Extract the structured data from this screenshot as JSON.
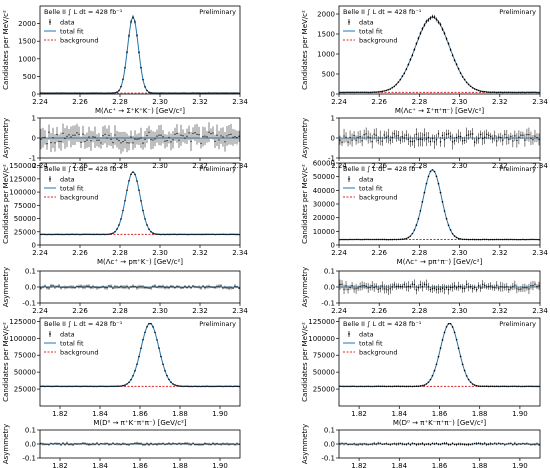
{
  "colors": {
    "data": "#000000",
    "fit": "#1f77b4",
    "background": "#d62728"
  },
  "legend": {
    "belle_label": "Belle II ∫ L dt = 428 fb⁻¹",
    "preliminary": "Preliminary",
    "data": "data",
    "total_fit": "total fit",
    "background": "background"
  },
  "asymmetry_ylabel": "Asymmetry",
  "chart_data": [
    {
      "type": "line",
      "row": 0,
      "col": 0,
      "title": "",
      "xlabel": "M(Λc⁺ → Σ⁺K⁺K⁻)  [GeV/c²]",
      "ylabel": "Candidates per MeV/c²",
      "xlim": [
        2.24,
        2.34
      ],
      "ylim": [
        0,
        2500
      ],
      "xticks": [
        "2.24",
        "2.26",
        "2.28",
        "2.30",
        "2.32",
        "2.34"
      ],
      "yticks": [
        "0",
        "500",
        "1000",
        "1500",
        "2000"
      ],
      "series": [
        {
          "name": "total fit",
          "peak": 2.2865,
          "sigma": 0.0027,
          "amplitude": 2150,
          "background": 25
        }
      ],
      "legend": "top-left",
      "asymmetry": {
        "ylim": [
          -1,
          1
        ],
        "yticks": [
          "-1",
          "0",
          "1"
        ],
        "xticks": [
          "2.24",
          "2.26",
          "2.28",
          "2.30",
          "2.32",
          "2.34"
        ],
        "spread": 0.5
      }
    },
    {
      "type": "line",
      "row": 0,
      "col": 1,
      "title": "",
      "xlabel": "M(Λc⁺ → Σ⁺π⁺π⁻)  [GeV/c²]",
      "ylabel": "Candidates per MeV/c²",
      "xlim": [
        2.24,
        2.34
      ],
      "ylim": [
        0,
        2200
      ],
      "xticks": [
        "2.24",
        "2.26",
        "2.28",
        "2.30",
        "2.32",
        "2.34"
      ],
      "yticks": [
        "0",
        "500",
        "1000",
        "1500",
        "2000"
      ],
      "series": [
        {
          "name": "total fit",
          "peak": 2.2865,
          "sigma": 0.0085,
          "amplitude": 1880,
          "background": 40
        }
      ],
      "legend": "top-left",
      "asymmetry": {
        "ylim": [
          -1,
          1
        ],
        "yticks": [
          "-1",
          "0",
          "1"
        ],
        "xticks": [
          "2.24",
          "2.26",
          "2.28",
          "2.30",
          "2.32",
          "2.34"
        ],
        "spread": 0.35
      }
    },
    {
      "type": "line",
      "row": 1,
      "col": 0,
      "title": "",
      "xlabel": "M(Λc⁺ → pπ⁺K⁻)  [GeV/c²]",
      "ylabel": "Candidates per MeV/c²",
      "xlim": [
        2.24,
        2.34
      ],
      "ylim": [
        0,
        155000
      ],
      "xticks": [
        "2.24",
        "2.26",
        "2.28",
        "2.30",
        "2.32",
        "2.34"
      ],
      "yticks": [
        "0",
        "25000",
        "50000",
        "75000",
        "100000",
        "125000",
        "150000"
      ],
      "series": [
        {
          "name": "total fit",
          "peak": 2.2865,
          "sigma": 0.0036,
          "amplitude": 118000,
          "background": 20000
        }
      ],
      "legend": "top-left",
      "asymmetry": {
        "ylim": [
          -0.1,
          0.1
        ],
        "yticks": [
          "-0.1",
          "0.0",
          "0.1"
        ],
        "xticks": [
          "2.24",
          "2.26",
          "2.28",
          "2.30",
          "2.32",
          "2.34"
        ],
        "spread": 0.012
      }
    },
    {
      "type": "line",
      "row": 1,
      "col": 1,
      "title": "",
      "xlabel": "M(Λc⁺ → pπ⁺π⁻)  [GeV/c²]",
      "ylabel": "Candidates per MeV/c²",
      "xlim": [
        2.24,
        2.34
      ],
      "ylim": [
        0,
        60000
      ],
      "xticks": [
        "2.24",
        "2.26",
        "2.28",
        "2.30",
        "2.32",
        "2.34"
      ],
      "yticks": [
        "0",
        "10000",
        "20000",
        "30000",
        "40000",
        "50000",
        "60000"
      ],
      "series": [
        {
          "name": "total fit",
          "peak": 2.2865,
          "sigma": 0.0045,
          "amplitude": 51000,
          "background": 4000
        }
      ],
      "legend": "top-left",
      "asymmetry": {
        "ylim": [
          -0.1,
          0.1
        ],
        "yticks": [
          "-0.1",
          "0.0",
          "0.1"
        ],
        "xticks": [
          "2.24",
          "2.26",
          "2.28",
          "2.30",
          "2.32",
          "2.34"
        ],
        "spread": 0.03
      }
    },
    {
      "type": "line",
      "row": 2,
      "col": 0,
      "title": "",
      "xlabel": "M(D⁰ → π⁺K⁻π⁺π⁻)  [GeV/c²]",
      "ylabel": "Candidates per MeV/c²",
      "xlim": [
        1.81,
        1.91
      ],
      "ylim": [
        0,
        130000
      ],
      "xticks": [
        "1.82",
        "1.84",
        "1.86",
        "1.88",
        "1.90"
      ],
      "yticks": [
        "25000",
        "50000",
        "75000",
        "100000",
        "125000"
      ],
      "series": [
        {
          "name": "total fit",
          "peak": 1.865,
          "sigma": 0.0045,
          "amplitude": 93000,
          "background": 29000
        }
      ],
      "legend": "top-left",
      "asymmetry": {
        "ylim": [
          -0.1,
          0.1
        ],
        "yticks": [
          "-0.1",
          "0.0",
          "0.1"
        ],
        "xticks": [
          "1.82",
          "1.84",
          "1.86",
          "1.88",
          "1.90"
        ],
        "spread": 0.01
      }
    },
    {
      "type": "line",
      "row": 2,
      "col": 1,
      "title": "",
      "xlabel": "M(D⁰ → π⁺K⁻π⁺π⁻)  [GeV/c²]",
      "ylabel": "Candidates per MeV/c²",
      "xlim": [
        1.81,
        1.91
      ],
      "ylim": [
        0,
        130000
      ],
      "xticks": [
        "1.82",
        "1.84",
        "1.86",
        "1.88",
        "1.90"
      ],
      "yticks": [
        "25000",
        "50000",
        "75000",
        "100000",
        "125000"
      ],
      "series": [
        {
          "name": "total fit",
          "peak": 1.865,
          "sigma": 0.0045,
          "amplitude": 93000,
          "background": 29000
        }
      ],
      "legend": "top-left",
      "asymmetry": {
        "ylim": [
          -0.1,
          0.1
        ],
        "yticks": [
          "-0.1",
          "0.0",
          "0.1"
        ],
        "xticks": [
          "1.82",
          "1.84",
          "1.86",
          "1.88",
          "1.90"
        ],
        "spread": 0.01
      }
    }
  ]
}
